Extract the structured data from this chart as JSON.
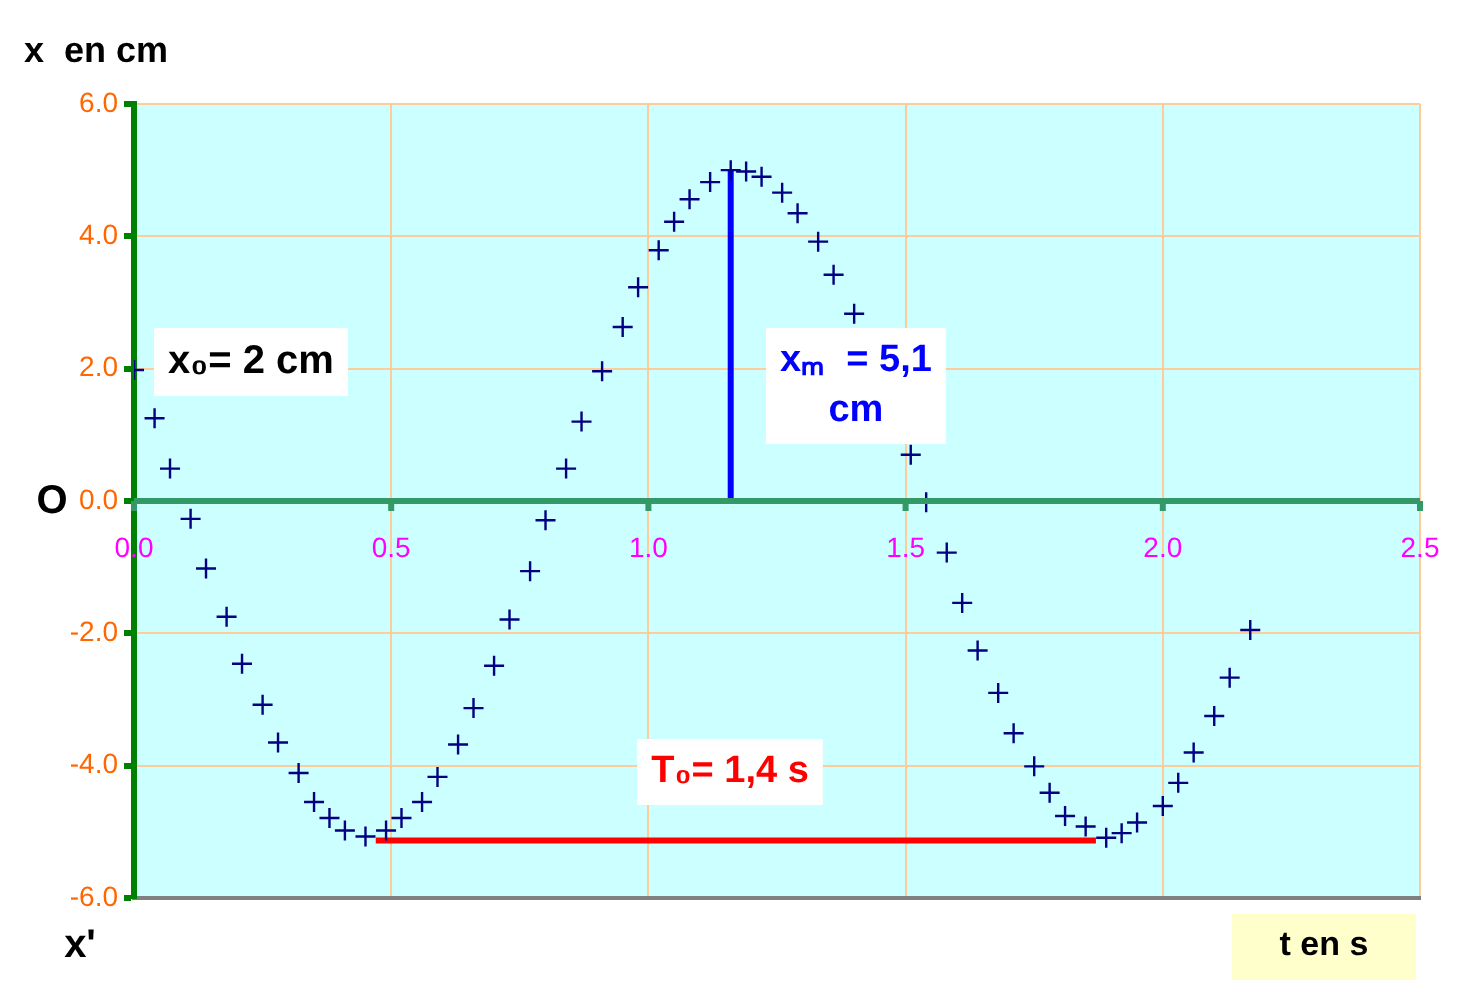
{
  "chart_data": {
    "type": "scatter",
    "xlabel": "t en s",
    "ylabel": "x  en cm",
    "xlim": [
      0,
      2.5
    ],
    "ylim": [
      -6,
      6
    ],
    "xticks": [
      {
        "value": 0,
        "label": "0.0"
      },
      {
        "value": 0.5,
        "label": "0.5"
      },
      {
        "value": 1,
        "label": "1.0"
      },
      {
        "value": 1.5,
        "label": "1.5"
      },
      {
        "value": 2,
        "label": "2.0"
      },
      {
        "value": 2.5,
        "label": "2.5"
      }
    ],
    "yticks": [
      {
        "value": -6,
        "label": "-6.0"
      },
      {
        "value": -4,
        "label": "-4.0"
      },
      {
        "value": -2,
        "label": "-2.0"
      },
      {
        "value": 0,
        "label": "0.0"
      },
      {
        "value": 2,
        "label": "2.0"
      },
      {
        "value": 4,
        "label": "4.0"
      },
      {
        "value": 6,
        "label": "6.0"
      }
    ],
    "grid": true,
    "legend": false,
    "series": [
      {
        "color": "#000080",
        "marker": "cross",
        "x": [
          0.0,
          0.04,
          0.07,
          0.11,
          0.14,
          0.18,
          0.21,
          0.25,
          0.28,
          0.32,
          0.35,
          0.38,
          0.41,
          0.45,
          0.49,
          0.52,
          0.56,
          0.59,
          0.63,
          0.66,
          0.7,
          0.73,
          0.77,
          0.8,
          0.84,
          0.87,
          0.91,
          0.95,
          0.98,
          1.02,
          1.05,
          1.08,
          1.12,
          1.16,
          1.19,
          1.22,
          1.26,
          1.29,
          1.33,
          1.36,
          1.4,
          1.44,
          1.47,
          1.51,
          1.54,
          1.58,
          1.61,
          1.64,
          1.68,
          1.71,
          1.75,
          1.78,
          1.81,
          1.85,
          1.89,
          1.92,
          1.95,
          2.0,
          2.03,
          2.06,
          2.1,
          2.13,
          2.17
        ],
        "values": [
          1.98,
          1.25,
          0.49,
          -0.27,
          -1.02,
          -1.75,
          -2.46,
          -3.08,
          -3.65,
          -4.11,
          -4.55,
          -4.79,
          -4.98,
          -5.07,
          -4.98,
          -4.79,
          -4.55,
          -4.17,
          -3.68,
          -3.13,
          -2.49,
          -1.79,
          -1.06,
          -0.29,
          0.49,
          1.2,
          1.96,
          2.63,
          3.23,
          3.79,
          4.22,
          4.56,
          4.82,
          5.0,
          4.98,
          4.9,
          4.66,
          4.35,
          3.92,
          3.42,
          2.83,
          null,
          null,
          0.7,
          -0.02,
          -0.78,
          -1.54,
          -2.26,
          -2.9,
          -3.51,
          -4.01,
          -4.41,
          -4.76,
          -4.92,
          -5.09,
          -5.02,
          -4.86,
          -4.61,
          -4.26,
          -3.8,
          -3.25,
          -2.67,
          -1.95
        ]
      },
      {
        "type": "line",
        "color": "#0000ff",
        "marker": "none",
        "line_style": "solid",
        "x": [
          1.16,
          1.16
        ],
        "values": [
          0,
          5.0
        ]
      },
      {
        "type": "line",
        "color": "#ff0000",
        "marker": "none",
        "line_style": "solid",
        "x": [
          0.47,
          1.87
        ],
        "values": [
          -5.13,
          -5.13
        ]
      }
    ],
    "annotations": [
      "x₀= 2 cm",
      "xₘ  = 5,1 cm",
      "T₀= 1,4 s",
      "O",
      "x'"
    ]
  }
}
